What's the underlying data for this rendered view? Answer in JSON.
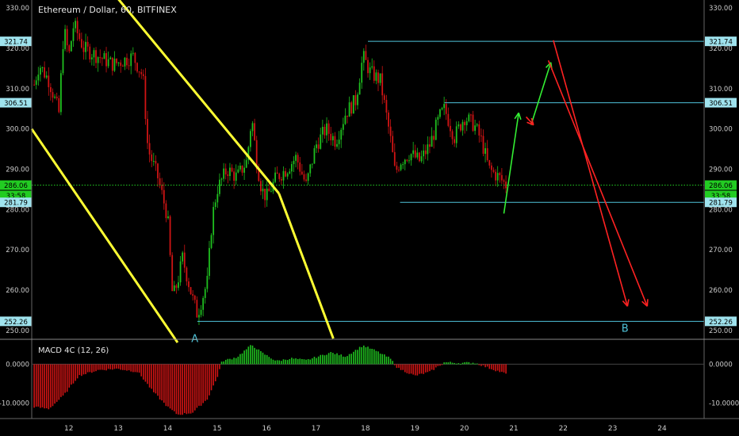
{
  "header": {
    "title": "Ethereum / Dollar, 60, BITFINEX"
  },
  "macd": {
    "title": "MACD 4C (12, 26)"
  },
  "colors": {
    "background": "#000000",
    "up": "#1fbf1f",
    "down": "#d01414",
    "channel": "#ffff33",
    "level": "#4fc3d9",
    "current_price": "#22cc22",
    "forecast_up": "#33ee33",
    "forecast_down": "#ff2222",
    "axis_text": "#cccccc"
  },
  "chart_data": {
    "type": "candlestick",
    "title": "Ethereum / Dollar, 60, BITFINEX",
    "x_ticks": [
      "12",
      "13",
      "14",
      "15",
      "16",
      "17",
      "18",
      "19",
      "20",
      "21",
      "22",
      "23",
      "24"
    ],
    "y_ticks": [
      "250.00",
      "260.00",
      "270.00",
      "280.00",
      "290.00",
      "300.00",
      "310.00",
      "320.00",
      "330.00"
    ],
    "ylim": [
      248,
      332
    ],
    "xlim": [
      11.25,
      24.85
    ],
    "last_data_day": 20.85,
    "current_price": {
      "value": 286.06,
      "label": "286.06",
      "countdown": "33:58"
    },
    "price_path": [
      [
        11.3,
        311
      ],
      [
        11.4,
        316
      ],
      [
        11.6,
        312
      ],
      [
        11.8,
        304
      ],
      [
        11.9,
        325
      ],
      [
        12.0,
        318
      ],
      [
        12.1,
        326
      ],
      [
        12.3,
        320
      ],
      [
        12.6,
        318
      ],
      [
        12.9,
        316
      ],
      [
        13.1,
        317
      ],
      [
        13.3,
        318
      ],
      [
        13.5,
        313
      ],
      [
        13.6,
        295
      ],
      [
        13.8,
        288
      ],
      [
        14.0,
        278
      ],
      [
        14.1,
        258
      ],
      [
        14.2,
        262
      ],
      [
        14.3,
        268
      ],
      [
        14.5,
        258
      ],
      [
        14.6,
        254
      ],
      [
        14.8,
        262
      ],
      [
        14.9,
        278
      ],
      [
        15.0,
        285
      ],
      [
        15.2,
        290
      ],
      [
        15.4,
        288
      ],
      [
        15.6,
        292
      ],
      [
        15.7,
        303
      ],
      [
        15.8,
        292
      ],
      [
        15.9,
        285
      ],
      [
        16.0,
        283
      ],
      [
        16.2,
        288
      ],
      [
        16.4,
        290
      ],
      [
        16.6,
        293
      ],
      [
        16.8,
        286
      ],
      [
        17.0,
        296
      ],
      [
        17.2,
        300
      ],
      [
        17.4,
        297
      ],
      [
        17.6,
        304
      ],
      [
        17.8,
        307
      ],
      [
        17.95,
        318
      ],
      [
        18.1,
        314
      ],
      [
        18.3,
        312
      ],
      [
        18.5,
        298
      ],
      [
        18.6,
        289
      ],
      [
        18.7,
        292
      ],
      [
        18.9,
        294
      ],
      [
        19.1,
        292
      ],
      [
        19.3,
        296
      ],
      [
        19.5,
        303
      ],
      [
        19.6,
        305
      ],
      [
        19.8,
        298
      ],
      [
        20.0,
        303
      ],
      [
        20.2,
        301
      ],
      [
        20.35,
        297
      ],
      [
        20.5,
        290
      ],
      [
        20.7,
        288
      ],
      [
        20.85,
        286
      ]
    ],
    "levels": [
      {
        "value": 321.74,
        "label": "321.74",
        "from_day": 18.05
      },
      {
        "value": 306.51,
        "label": "306.51",
        "from_day": 19.6
      },
      {
        "value": 281.79,
        "label": "281.79",
        "from_day": 18.7
      },
      {
        "value": 252.26,
        "label": "252.26",
        "from_day": 14.6
      }
    ],
    "channel_lines": [
      {
        "from": [
          11.25,
          300
        ],
        "to": [
          14.2,
          247
        ]
      },
      {
        "from": [
          12.95,
          333
        ],
        "to": [
          16.25,
          284
        ]
      },
      {
        "from": [
          16.25,
          284
        ],
        "to": [
          17.35,
          248
        ]
      }
    ],
    "forecast_arrows": [
      {
        "color": "up",
        "from": [
          20.8,
          279
        ],
        "to": [
          21.1,
          304
        ]
      },
      {
        "color": "up",
        "from": [
          21.35,
          301
        ],
        "to": [
          21.75,
          316.5
        ]
      },
      {
        "color": "down",
        "from": [
          21.25,
          303
        ],
        "to": [
          21.4,
          301
        ]
      },
      {
        "color": "down",
        "from": [
          21.8,
          322
        ],
        "to": [
          23.3,
          256
        ]
      },
      {
        "color": "down",
        "from": [
          21.7,
          317
        ],
        "to": [
          23.7,
          256
        ]
      }
    ],
    "annotations": [
      {
        "text": "A",
        "day": 14.55,
        "price": 249.5
      },
      {
        "text": "B",
        "day": 23.25,
        "price": 252.0
      }
    ],
    "macd": {
      "y_ticks": [
        "0.0000",
        "-10.0000"
      ],
      "ylim": [
        -14,
        6
      ],
      "histogram": [
        [
          11.3,
          -11
        ],
        [
          11.6,
          -11.5
        ],
        [
          11.9,
          -8
        ],
        [
          12.2,
          -3
        ],
        [
          12.6,
          -1.5
        ],
        [
          13.0,
          -1.2
        ],
        [
          13.4,
          -2
        ],
        [
          13.7,
          -7
        ],
        [
          14.0,
          -11
        ],
        [
          14.2,
          -13
        ],
        [
          14.5,
          -12.5
        ],
        [
          14.8,
          -9
        ],
        [
          15.0,
          -3.5
        ],
        [
          15.1,
          0.8
        ],
        [
          15.4,
          1.8
        ],
        [
          15.7,
          5
        ],
        [
          15.9,
          3
        ],
        [
          16.2,
          0.8
        ],
        [
          16.5,
          1.5
        ],
        [
          16.8,
          1
        ],
        [
          17.0,
          1.8
        ],
        [
          17.3,
          3
        ],
        [
          17.6,
          2
        ],
        [
          17.95,
          4.8
        ],
        [
          18.2,
          3.5
        ],
        [
          18.5,
          1.5
        ],
        [
          18.65,
          -1
        ],
        [
          19.0,
          -3
        ],
        [
          19.3,
          -2
        ],
        [
          19.6,
          0.5
        ],
        [
          19.9,
          0.3
        ],
        [
          20.2,
          0.4
        ],
        [
          20.5,
          -1
        ],
        [
          20.85,
          -2.5
        ]
      ]
    }
  }
}
